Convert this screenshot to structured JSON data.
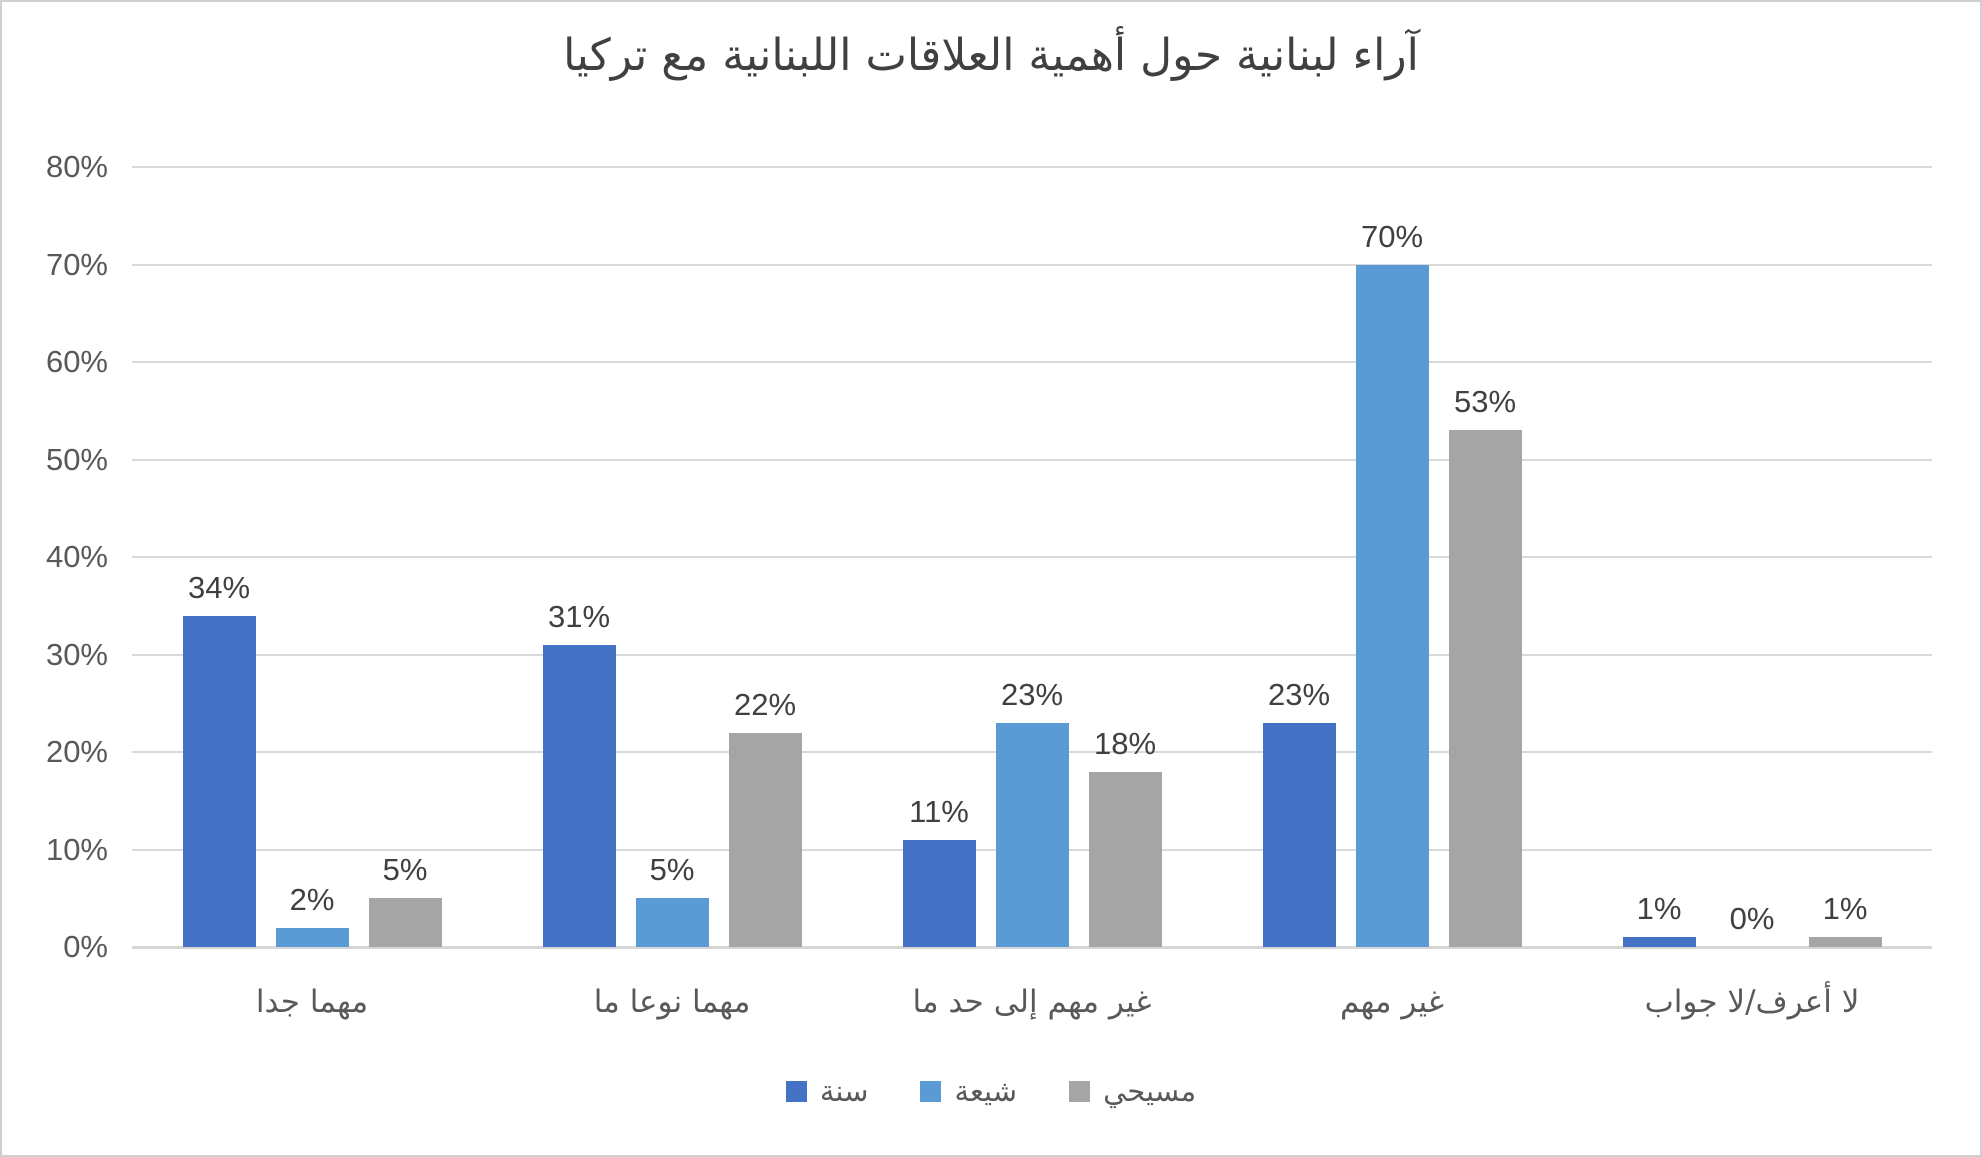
{
  "chart_data": {
    "type": "bar",
    "title": "آراء لبنانية حول أهمية العلاقات اللبنانية مع تركيا",
    "categories": [
      "مهما جدا",
      "مهما نوعا ما",
      "غير مهم إلى حد ما",
      "غير مهم",
      "لا أعرف/لا جواب"
    ],
    "series": [
      {
        "name": "سنة",
        "color": "#4472C4",
        "values": [
          34,
          31,
          11,
          23,
          1
        ]
      },
      {
        "name": "شيعة",
        "color": "#5B9BD5",
        "values": [
          2,
          5,
          23,
          70,
          0
        ]
      },
      {
        "name": "مسيحي",
        "color": "#A5A5A5",
        "values": [
          5,
          22,
          18,
          53,
          1
        ]
      }
    ],
    "data_labels": [
      [
        "34%",
        "31%",
        "11%",
        "23%",
        "1%"
      ],
      [
        "2%",
        "5%",
        "23%",
        "70%",
        "0%"
      ],
      [
        "5%",
        "22%",
        "18%",
        "53%",
        "1%"
      ]
    ],
    "xlabel": "",
    "ylabel": "",
    "ylim": [
      0,
      80
    ],
    "ytick_step": 10,
    "ytick_labels": [
      "0%",
      "10%",
      "20%",
      "30%",
      "40%",
      "50%",
      "60%",
      "70%",
      "80%"
    ],
    "grid": true,
    "legend_position": "bottom",
    "colors": {
      "gridline": "#D9D9D9",
      "axis_line": "#D6D6D6",
      "title_text": "#404040",
      "data_label_text": "#404040",
      "axis_text": "#595959",
      "background": "#FFFFFF",
      "border": "#D0CECE"
    }
  }
}
